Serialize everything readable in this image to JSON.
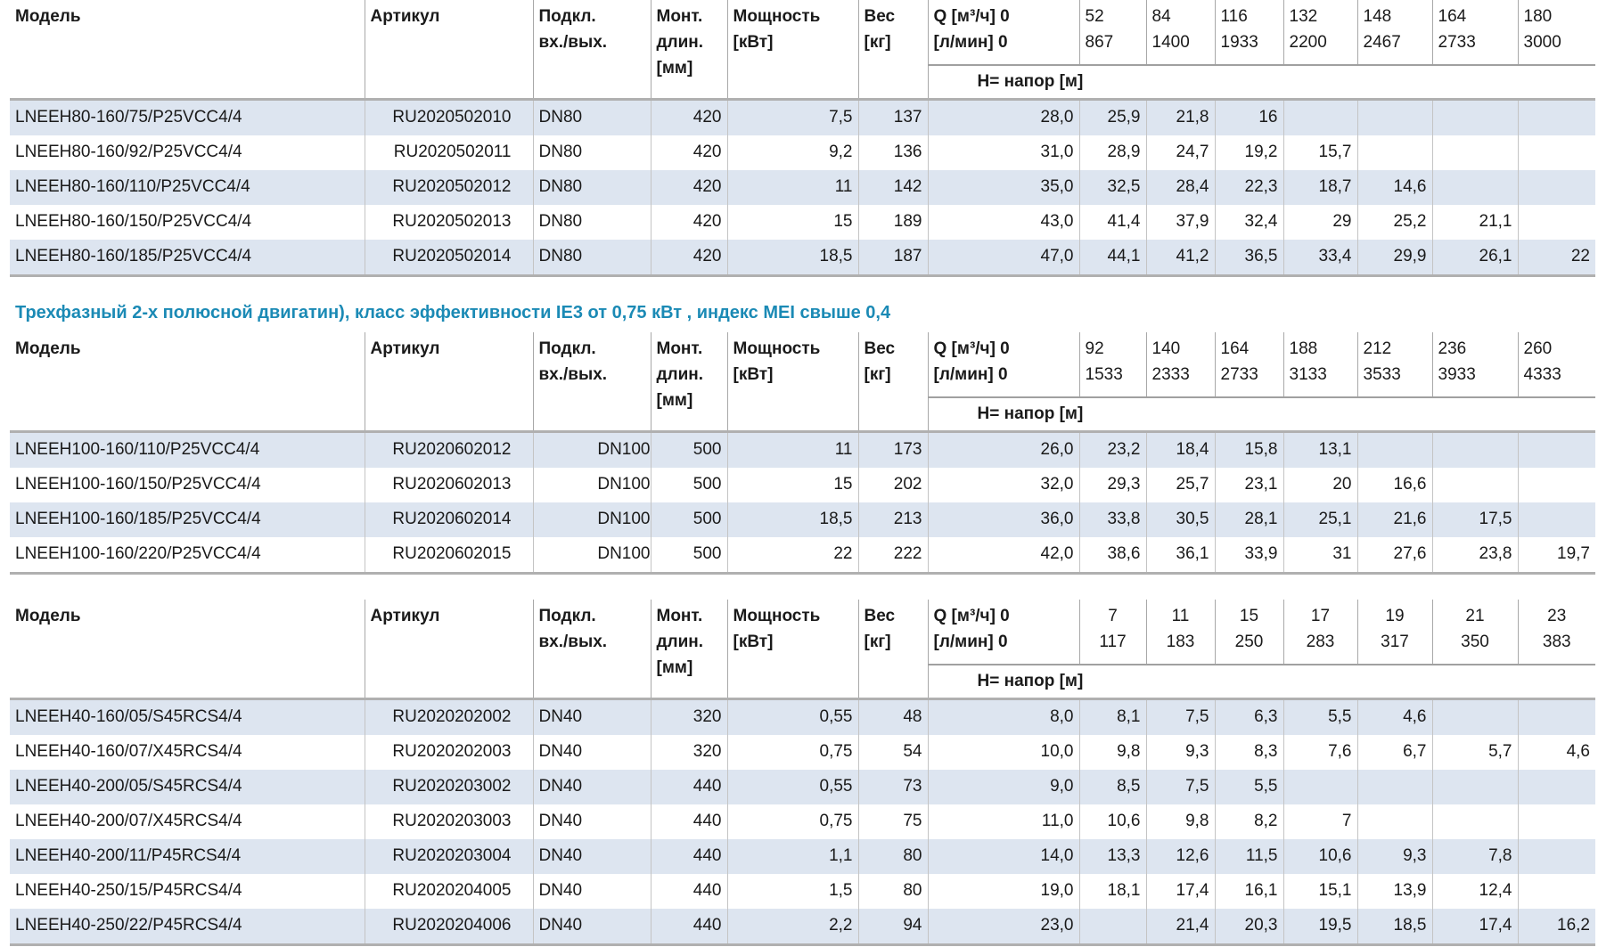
{
  "section_title": "Трехфазный 2-х полюсной двигатин), класс эффективности IE3 от 0,75 кВт ,  индекс MEI свыше 0,4",
  "tables": [
    {
      "header": {
        "model": "Модель",
        "article": "Артикул",
        "connection": [
          "Подкл.",
          "вх./вых."
        ],
        "length": [
          "Монт.",
          "длин.",
          "[мм]"
        ],
        "power": [
          "Мощность",
          "[кВт]"
        ],
        "weight": [
          "Вес",
          "[кг]"
        ],
        "q_m3h": "Q [м³/ч] 0",
        "q_lmin": "[л/мин] 0",
        "head": "H= напор [м]"
      },
      "q_columns": [
        {
          "m3h": 52,
          "lmin": 867
        },
        {
          "m3h": 84,
          "lmin": 1400
        },
        {
          "m3h": 116,
          "lmin": 1933
        },
        {
          "m3h": 132,
          "lmin": 2200
        },
        {
          "m3h": 148,
          "lmin": 2467
        },
        {
          "m3h": 164,
          "lmin": 2733
        },
        {
          "m3h": 180,
          "lmin": 3000
        }
      ],
      "rows": [
        {
          "model": "LNEEH80-160/75/P25VCC4/4",
          "article": "RU2020502010",
          "connection": "DN80",
          "length": 420,
          "power": "7,5",
          "weight": 137,
          "heads": [
            "28,0",
            "25,9",
            "21,8",
            16,
            null,
            null,
            null,
            null
          ]
        },
        {
          "model": "LNEEH80-160/92/P25VCC4/4",
          "article": "RU2020502011",
          "connection": "DN80",
          "length": 420,
          "power": "9,2",
          "weight": 136,
          "heads": [
            "31,0",
            "28,9",
            "24,7",
            "19,2",
            "15,7",
            null,
            null,
            null
          ]
        },
        {
          "model": "LNEEH80-160/110/P25VCC4/4",
          "article": "RU2020502012",
          "connection": "DN80",
          "length": 420,
          "power": 11,
          "weight": 142,
          "heads": [
            "35,0",
            "32,5",
            "28,4",
            "22,3",
            "18,7",
            "14,6",
            null,
            null
          ]
        },
        {
          "model": "LNEEH80-160/150/P25VCC4/4",
          "article": "RU2020502013",
          "connection": "DN80",
          "length": 420,
          "power": 15,
          "weight": 189,
          "heads": [
            "43,0",
            "41,4",
            "37,9",
            "32,4",
            29,
            "25,2",
            "21,1",
            null
          ]
        },
        {
          "model": "LNEEH80-160/185/P25VCC4/4",
          "article": "RU2020502014",
          "connection": "DN80",
          "length": 420,
          "power": "18,5",
          "weight": 187,
          "heads": [
            "47,0",
            "44,1",
            "41,2",
            "36,5",
            "33,4",
            "29,9",
            "26,1",
            22
          ]
        }
      ]
    },
    {
      "header": {
        "model": "Модель",
        "article": "Артикул",
        "connection": [
          "Подкл.",
          "вх./вых."
        ],
        "length": [
          "Монт.",
          "длин.",
          "[мм]"
        ],
        "power": [
          "Мощность",
          "[кВт]"
        ],
        "weight": [
          "Вес",
          "[кг]"
        ],
        "q_m3h": "Q [м³/ч] 0",
        "q_lmin": "[л/мин] 0",
        "head": "H= напор [м]"
      },
      "q_columns": [
        {
          "m3h": 92,
          "lmin": 1533
        },
        {
          "m3h": 140,
          "lmin": 2333
        },
        {
          "m3h": 164,
          "lmin": 2733
        },
        {
          "m3h": 188,
          "lmin": 3133
        },
        {
          "m3h": 212,
          "lmin": 3533
        },
        {
          "m3h": 236,
          "lmin": 3933
        },
        {
          "m3h": 260,
          "lmin": 4333
        }
      ],
      "rows": [
        {
          "model": "LNEEH100-160/110/P25VCC4/4",
          "article": "RU2020602012",
          "connection": "DN100",
          "length": 500,
          "power": 11,
          "weight": 173,
          "heads": [
            "26,0",
            "23,2",
            "18,4",
            "15,8",
            "13,1",
            null,
            null,
            null
          ]
        },
        {
          "model": "LNEEH100-160/150/P25VCC4/4",
          "article": "RU2020602013",
          "connection": "DN100",
          "length": 500,
          "power": 15,
          "weight": 202,
          "heads": [
            "32,0",
            "29,3",
            "25,7",
            "23,1",
            20,
            "16,6",
            null,
            null
          ]
        },
        {
          "model": "LNEEH100-160/185/P25VCC4/4",
          "article": "RU2020602014",
          "connection": "DN100",
          "length": 500,
          "power": "18,5",
          "weight": 213,
          "heads": [
            "36,0",
            "33,8",
            "30,5",
            "28,1",
            "25,1",
            "21,6",
            "17,5",
            null
          ]
        },
        {
          "model": "LNEEH100-160/220/P25VCC4/4",
          "article": "RU2020602015",
          "connection": "DN100",
          "length": 500,
          "power": 22,
          "weight": 222,
          "heads": [
            "42,0",
            "38,6",
            "36,1",
            "33,9",
            31,
            "27,6",
            "23,8",
            "19,7"
          ]
        }
      ]
    },
    {
      "header": {
        "model": "Модель",
        "article": "Артикул",
        "connection": [
          "Подкл.",
          "вх./вых."
        ],
        "length": [
          "Монт.",
          "длин.",
          "[мм]"
        ],
        "power": [
          "Мощность",
          "[кВт]"
        ],
        "weight": [
          "Вес",
          "[кг]"
        ],
        "q_m3h": "Q [м³/ч] 0",
        "q_lmin": "[л/мин] 0",
        "head": "H= напор [м]"
      },
      "q_columns": [
        {
          "m3h": 7,
          "lmin": 117
        },
        {
          "m3h": 11,
          "lmin": 183
        },
        {
          "m3h": 15,
          "lmin": 250
        },
        {
          "m3h": 17,
          "lmin": 283
        },
        {
          "m3h": 19,
          "lmin": 317
        },
        {
          "m3h": 21,
          "lmin": 350
        },
        {
          "m3h": 23,
          "lmin": 383
        }
      ],
      "rows": [
        {
          "model": "LNEEH40-160/05/S45RCS4/4",
          "article": "RU2020202002",
          "connection": "DN40",
          "length": 320,
          "power": "0,55",
          "weight": 48,
          "heads": [
            "8,0",
            "8,1",
            "7,5",
            "6,3",
            "5,5",
            "4,6",
            null,
            null
          ]
        },
        {
          "model": "LNEEH40-160/07/X45RCS4/4",
          "article": "RU2020202003",
          "connection": "DN40",
          "length": 320,
          "power": "0,75",
          "weight": 54,
          "heads": [
            "10,0",
            "9,8",
            "9,3",
            "8,3",
            "7,6",
            "6,7",
            "5,7",
            "4,6"
          ]
        },
        {
          "model": "LNEEH40-200/05/S45RCS4/4",
          "article": "RU2020203002",
          "connection": "DN40",
          "length": 440,
          "power": "0,55",
          "weight": 73,
          "heads": [
            "9,0",
            "8,5",
            "7,5",
            "5,5",
            null,
            null,
            null,
            null
          ]
        },
        {
          "model": "LNEEH40-200/07/X45RCS4/4",
          "article": "RU2020203003",
          "connection": "DN40",
          "length": 440,
          "power": "0,75",
          "weight": 75,
          "heads": [
            "11,0",
            "10,6",
            "9,8",
            "8,2",
            7,
            null,
            null,
            null
          ]
        },
        {
          "model": "LNEEH40-200/11/P45RCS4/4",
          "article": "RU2020203004",
          "connection": "DN40",
          "length": 440,
          "power": "1,1",
          "weight": 80,
          "heads": [
            "14,0",
            "13,3",
            "12,6",
            "11,5",
            "10,6",
            "9,3",
            "7,8",
            null
          ]
        },
        {
          "model": "LNEEH40-250/15/P45RCS4/4",
          "article": "RU2020204005",
          "connection": "DN40",
          "length": 440,
          "power": "1,5",
          "weight": 80,
          "heads": [
            "19,0",
            "18,1",
            "17,4",
            "16,1",
            "15,1",
            "13,9",
            "12,4",
            null
          ]
        },
        {
          "model": "LNEEH40-250/22/P45RCS4/4",
          "article": "RU2020204006",
          "connection": "DN40",
          "length": 440,
          "power": "2,2",
          "weight": 94,
          "heads": [
            "23,0",
            null,
            "21,4",
            "20,3",
            "19,5",
            "18,5",
            "17,4",
            "16,2"
          ]
        }
      ]
    }
  ]
}
